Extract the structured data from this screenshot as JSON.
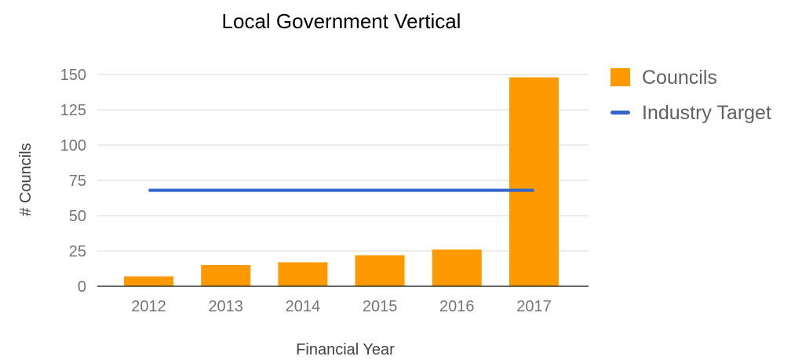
{
  "chart_data": {
    "type": "bar",
    "title": "Local Government Vertical",
    "xlabel": "Financial Year",
    "ylabel": "# Councils",
    "categories": [
      "2012",
      "2013",
      "2014",
      "2015",
      "2016",
      "2017"
    ],
    "series": [
      {
        "name": "Councils",
        "type": "bar",
        "color": "#ff9900",
        "values": [
          7,
          15,
          17,
          22,
          26,
          148
        ]
      },
      {
        "name": "Industry Target",
        "type": "line",
        "color": "#3366cc",
        "values": [
          68,
          68,
          68,
          68,
          68,
          68
        ]
      }
    ],
    "ylim": [
      0,
      150
    ],
    "yticks": [
      0,
      25,
      50,
      75,
      100,
      125,
      150
    ],
    "grid": true,
    "legend": "right"
  }
}
